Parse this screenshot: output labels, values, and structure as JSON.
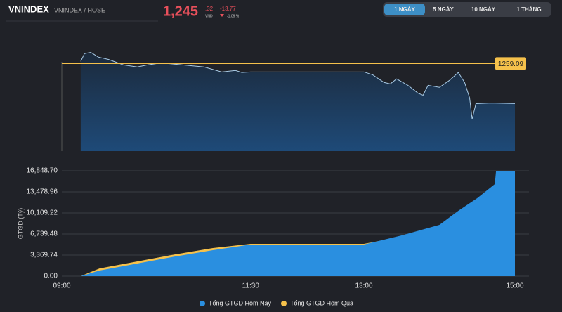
{
  "header": {
    "symbol": "VNINDEX",
    "exchange": "VNINDEX / HOSE",
    "price": "1,245",
    "price_decimal": ".32",
    "currency": "VND",
    "change": "-13.77",
    "change_pct": "-1.09 %",
    "tabs": [
      "1 NGÀY",
      "5 NGÀY",
      "10 NGÀY",
      "1 THÁNG"
    ],
    "active_tab": 0
  },
  "chart_data": [
    {
      "type": "line",
      "x": [
        "09:15",
        "09:18",
        "09:23",
        "09:29",
        "09:37",
        "09:49",
        "10:00",
        "10:08",
        "10:19",
        "10:36",
        "10:53",
        "11:07",
        "11:18",
        "11:23",
        "11:30",
        "13:00",
        "13:07",
        "13:16",
        "13:21",
        "13:26",
        "13:35",
        "13:43",
        "13:47",
        "13:51",
        "14:00",
        "14:08",
        "14:15",
        "14:20",
        "14:24",
        "14:26",
        "14:29",
        "14:41",
        "15:00"
      ],
      "series": [
        {
          "color": "#a9cbe6",
          "values": [
            1259.8,
            1262.5,
            1262.9,
            1261.3,
            1260.5,
            1258.6,
            1257.9,
            1258.6,
            1259.3,
            1258.6,
            1257.9,
            1256.2,
            1256.7,
            1256.0,
            1256.2,
            1256.2,
            1255.2,
            1252.6,
            1252.1,
            1253.8,
            1251.6,
            1248.9,
            1248.2,
            1251.6,
            1250.9,
            1253.3,
            1256.0,
            1252.6,
            1247.3,
            1240.0,
            1245.3,
            1245.5,
            1245.32
          ]
        }
      ],
      "reference": {
        "value": 1259.09,
        "label": "1259.09",
        "color": "#f5c14b"
      },
      "xlim": [
        "09:00",
        "15:00"
      ],
      "ylim": [
        1229,
        1264
      ]
    },
    {
      "type": "area",
      "y_label": "GTGD (Tỷ)",
      "x": [
        "09:15",
        "09:30",
        "10:00",
        "10:30",
        "11:00",
        "11:30",
        "13:00",
        "13:30",
        "14:00",
        "14:15",
        "14:30",
        "14:44",
        "14:45",
        "15:00"
      ],
      "series": [
        {
          "name": "Tổng GTGD Hôm Qua",
          "color": "#f5c14b",
          "values": [
            0,
            1235,
            2358,
            3481,
            4492,
            5166,
            5166,
            6289,
            7637,
            8760,
            9883,
            11900,
            12130,
            12354
          ]
        },
        {
          "name": "Tổng GTGD Hôm Nay",
          "color": "#2a8fe0",
          "values": [
            0,
            899,
            2022,
            3145,
            4156,
            5054,
            5054,
            6514,
            8199,
            10446,
            12467,
            14713,
            16849,
            16849
          ]
        }
      ],
      "xlim": [
        "09:00",
        "15:00"
      ],
      "xticks": [
        "09:00",
        "11:30",
        "13:00",
        "15:00"
      ],
      "ylim": [
        0,
        16848.7
      ],
      "yticks": [
        {
          "value": 0,
          "label": "0.00"
        },
        {
          "value": 3369.74,
          "label": "3,369.74"
        },
        {
          "value": 6739.48,
          "label": "6,739.48"
        },
        {
          "value": 10109.22,
          "label": "10,109.22"
        },
        {
          "value": 13478.96,
          "label": "13,478.96"
        },
        {
          "value": 16848.7,
          "label": "16,848.70"
        }
      ],
      "grid": true,
      "legend": "bottom"
    }
  ]
}
